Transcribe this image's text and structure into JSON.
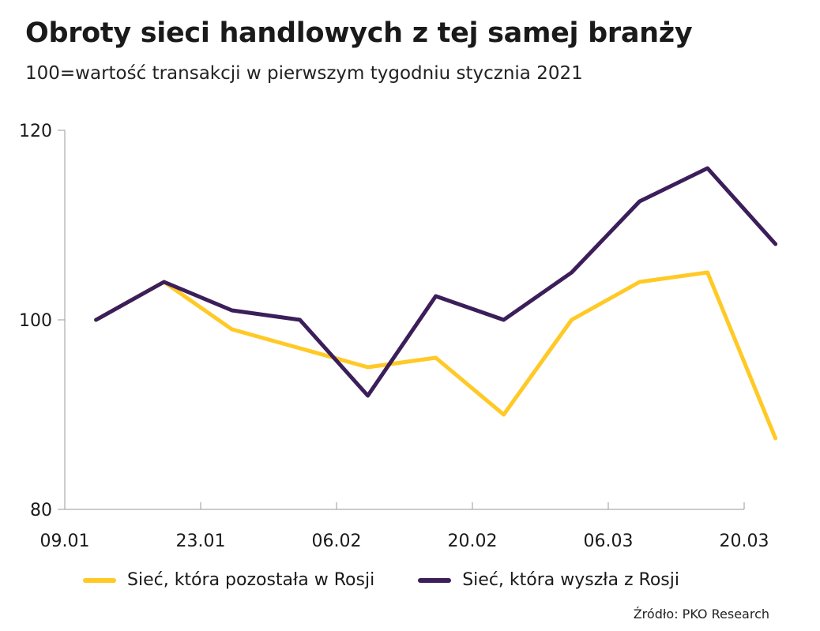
{
  "chart_data": {
    "type": "line",
    "title": "Obroty sieci handlowych z tej samej branży",
    "subtitle": "100=wartość transakcji w pierwszym tygodniu stycznia 2021",
    "x_tick_labels": [
      "09.01",
      "23.01",
      "06.02",
      "20.02",
      "06.03",
      "20.03"
    ],
    "y_ticks": [
      80,
      100,
      120
    ],
    "ylim": [
      80,
      120
    ],
    "x": [
      1,
      2,
      3,
      4,
      5,
      6,
      7,
      8,
      9,
      10,
      11
    ],
    "xlim": [
      0.54,
      10.54
    ],
    "series": [
      {
        "name": "Sieć, która pozostała w Rosji",
        "color": "#FFC926",
        "values": [
          100,
          104,
          99,
          97,
          95,
          96,
          90,
          100,
          104,
          105,
          87.5
        ]
      },
      {
        "name": "Sieć, która wyszła z Rosji",
        "color": "#3B1E5A",
        "values": [
          100,
          104,
          101,
          100,
          92,
          102.5,
          100,
          105,
          112.5,
          116,
          108
        ]
      }
    ],
    "grid": false,
    "legend_position": "bottom"
  },
  "source": "Źródło: PKO Research"
}
